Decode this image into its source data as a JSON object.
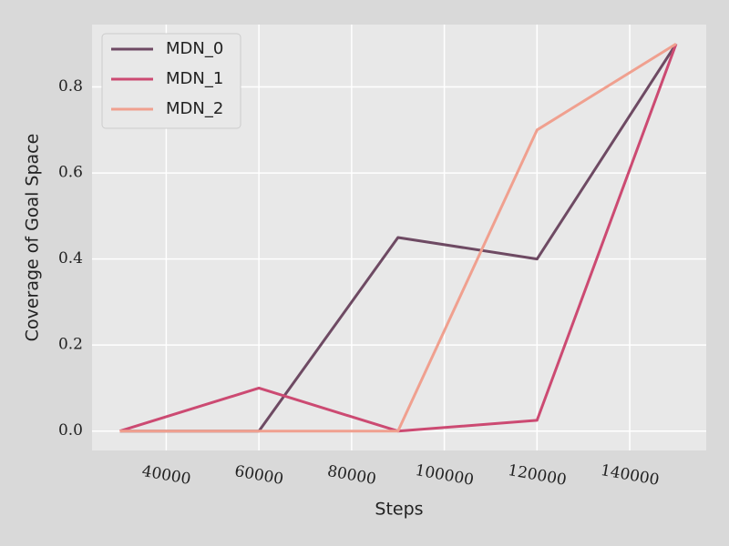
{
  "chart_data": {
    "type": "line",
    "xlabel": "Steps",
    "ylabel": "Coverage of Goal Space",
    "x": [
      30000,
      60000,
      90000,
      120000,
      150000
    ],
    "series": [
      {
        "name": "MDN_0",
        "color": "#6e4a63",
        "values": [
          0,
          0,
          0.45,
          0.4,
          0.9
        ]
      },
      {
        "name": "MDN_1",
        "color": "#cc4a72",
        "values": [
          0,
          0.1,
          0,
          0.025,
          0.9
        ]
      },
      {
        "name": "MDN_2",
        "color": "#f0a08f",
        "values": [
          0,
          0,
          0,
          0.7,
          0.9
        ]
      }
    ],
    "xlim": [
      24000,
      156500
    ],
    "xticks": [
      40000,
      60000,
      80000,
      100000,
      120000,
      140000
    ],
    "ylim": [
      -0.045,
      0.945
    ],
    "yticks": [
      {
        "value": 0,
        "label": "0.0"
      },
      {
        "value": 0.2,
        "label": "0.2"
      },
      {
        "value": 0.4,
        "label": "0.4"
      },
      {
        "value": 0.6,
        "label": "0.6"
      },
      {
        "value": 0.8,
        "label": "0.8"
      }
    ],
    "grid": true,
    "legend": "upper left"
  }
}
